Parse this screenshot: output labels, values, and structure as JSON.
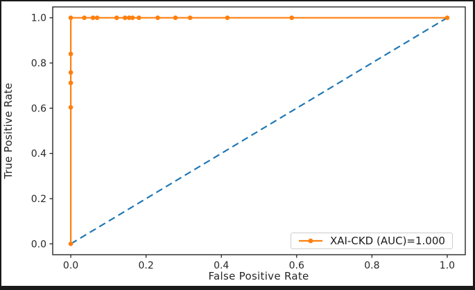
{
  "figure": {
    "background": "#ffffff",
    "border_color": "#1a1a1a"
  },
  "chart_data": {
    "type": "line",
    "title": "",
    "xlabel": "False Positive Rate",
    "ylabel": "True Positive Rate",
    "xlim": [
      -0.048,
      1.048
    ],
    "ylim": [
      -0.048,
      1.048
    ],
    "xticks": [
      0.0,
      0.2,
      0.4,
      0.6,
      0.8,
      1.0
    ],
    "yticks": [
      0.0,
      0.2,
      0.4,
      0.6,
      0.8,
      1.0
    ],
    "grid": false,
    "axis_color": "#262626",
    "legend": {
      "position": "lower-right",
      "border_color": "#cccccc",
      "entries": [
        {
          "label": "XAI-CKD (AUC)=1.000",
          "color": "#ff7f0e",
          "marker": "circle",
          "line_style": "solid"
        }
      ]
    },
    "series": [
      {
        "name": "chance-diagonal",
        "color": "#1f77b4",
        "line_style": "dashed",
        "marker": "none",
        "points": [
          [
            0,
            0
          ],
          [
            1,
            1
          ]
        ]
      },
      {
        "name": "XAI-CKD (AUC)=1.000",
        "color": "#ff7f0e",
        "line_style": "solid",
        "marker": "circle",
        "points": [
          [
            0,
            0
          ],
          [
            0,
            0.604
          ],
          [
            0,
            0.712
          ],
          [
            0,
            0.758
          ],
          [
            0,
            0.84
          ],
          [
            0,
            1.0
          ],
          [
            0.036,
            1.0
          ],
          [
            0.059,
            1.0
          ],
          [
            0.07,
            1.0
          ],
          [
            0.122,
            1.0
          ],
          [
            0.144,
            1.0
          ],
          [
            0.155,
            1.0
          ],
          [
            0.164,
            1.0
          ],
          [
            0.181,
            1.0
          ],
          [
            0.231,
            1.0
          ],
          [
            0.278,
            1.0
          ],
          [
            0.317,
            1.0
          ],
          [
            0.416,
            1.0
          ],
          [
            0.587,
            1.0
          ],
          [
            1.0,
            1.0
          ]
        ]
      }
    ]
  }
}
